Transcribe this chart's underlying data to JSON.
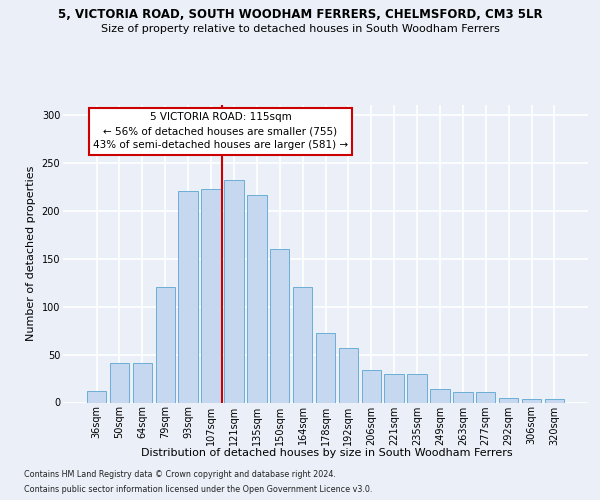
{
  "title_line1": "5, VICTORIA ROAD, SOUTH WOODHAM FERRERS, CHELMSFORD, CM3 5LR",
  "title_line2": "Size of property relative to detached houses in South Woodham Ferrers",
  "xlabel": "Distribution of detached houses by size in South Woodham Ferrers",
  "ylabel": "Number of detached properties",
  "categories": [
    "36sqm",
    "50sqm",
    "64sqm",
    "79sqm",
    "93sqm",
    "107sqm",
    "121sqm",
    "135sqm",
    "150sqm",
    "164sqm",
    "178sqm",
    "192sqm",
    "206sqm",
    "221sqm",
    "235sqm",
    "249sqm",
    "263sqm",
    "277sqm",
    "292sqm",
    "306sqm",
    "320sqm"
  ],
  "values": [
    12,
    41,
    41,
    120,
    220,
    222,
    232,
    216,
    160,
    120,
    72,
    57,
    34,
    30,
    30,
    14,
    11,
    11,
    5,
    4,
    4
  ],
  "bar_color": "#C5D8EF",
  "bar_edge_color": "#6BAED6",
  "vline_color": "#cc0000",
  "vline_x": 6.0,
  "annotation_text": "5 VICTORIA ROAD: 115sqm\n← 56% of detached houses are smaller (755)\n43% of semi-detached houses are larger (581) →",
  "annotation_box_color": "#ffffff",
  "annotation_box_edge_color": "#cc0000",
  "bg_color": "#EBF0F8",
  "grid_color": "#ffffff",
  "footnote1": "Contains HM Land Registry data © Crown copyright and database right 2024.",
  "footnote2": "Contains public sector information licensed under the Open Government Licence v3.0.",
  "ylim": [
    0,
    310
  ],
  "yticks": [
    0,
    50,
    100,
    150,
    200,
    250,
    300
  ],
  "title1_fontsize": 8.5,
  "title2_fontsize": 8.0,
  "ylabel_fontsize": 8.0,
  "xlabel_fontsize": 8.0,
  "tick_fontsize": 7.0,
  "annot_fontsize": 7.5,
  "footnote_fontsize": 5.8
}
